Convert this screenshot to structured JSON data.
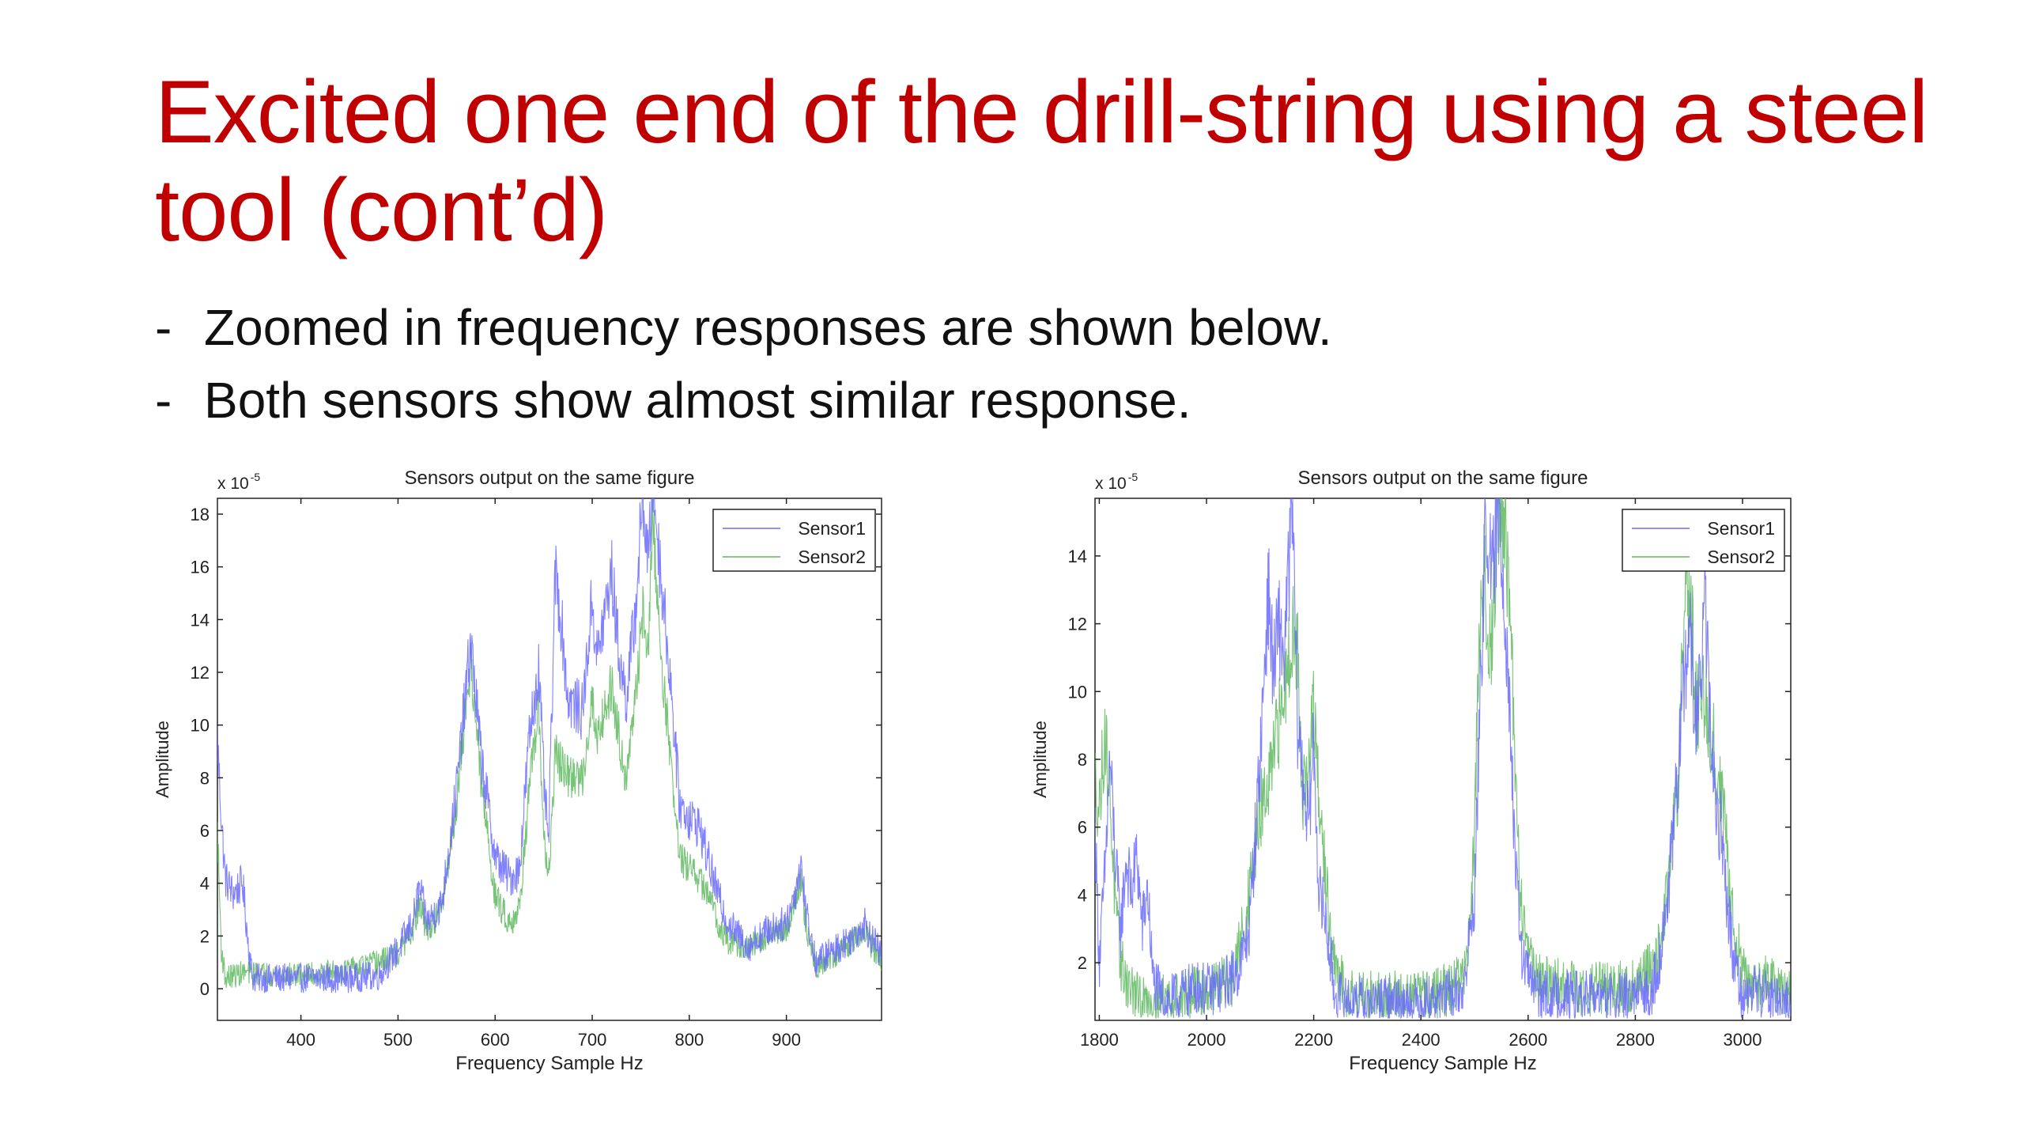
{
  "slide": {
    "title": "Excited one end of the drill-string using a steel tool (cont’d)",
    "bullets": [
      {
        "marker": "-",
        "text": "Zoomed in frequency responses are shown below."
      },
      {
        "marker": "-",
        "text": "Both sensors show almost similar response."
      }
    ]
  },
  "colors": {
    "title": "#c00000",
    "sensor1": "#6b6bff",
    "sensor2": "#5fb85f",
    "axis": "#222222"
  },
  "chart_data": [
    {
      "type": "line",
      "title": "Sensors output on the same figure",
      "xlabel": "Frequency Sample Hz",
      "ylabel": "Amplitude",
      "y_multiplier": "x 10",
      "y_exponent": "-5",
      "xlim": [
        314,
        998
      ],
      "ylim": [
        -1.2,
        18.6
      ],
      "xticks": [
        400,
        500,
        600,
        700,
        800,
        900
      ],
      "yticks": [
        0,
        2,
        4,
        6,
        8,
        10,
        12,
        14,
        16,
        18
      ],
      "legend": "top-right",
      "grid": false,
      "noise": {
        "sensor1": 0.9,
        "sensor2": 0.75
      },
      "series": [
        {
          "name": "Sensor1",
          "color": "#6b6bff",
          "points": [
            [
              314,
              9.5
            ],
            [
              318,
              6.5
            ],
            [
              322,
              4.2
            ],
            [
              330,
              3.6
            ],
            [
              340,
              4.0
            ],
            [
              345,
              2.0
            ],
            [
              350,
              0.4
            ],
            [
              400,
              0.4
            ],
            [
              450,
              0.4
            ],
            [
              480,
              0.5
            ],
            [
              500,
              1.5
            ],
            [
              515,
              2.5
            ],
            [
              522,
              3.8
            ],
            [
              530,
              2.5
            ],
            [
              545,
              3.2
            ],
            [
              560,
              7.5
            ],
            [
              575,
              13.2
            ],
            [
              585,
              9.0
            ],
            [
              600,
              5.0
            ],
            [
              615,
              4.2
            ],
            [
              625,
              4.5
            ],
            [
              635,
              9.5
            ],
            [
              645,
              12.2
            ],
            [
              650,
              8.0
            ],
            [
              655,
              5.5
            ],
            [
              662,
              15.8
            ],
            [
              668,
              14.0
            ],
            [
              675,
              11.0
            ],
            [
              690,
              10.5
            ],
            [
              700,
              14.8
            ],
            [
              705,
              12.5
            ],
            [
              712,
              14.0
            ],
            [
              720,
              15.8
            ],
            [
              728,
              12.5
            ],
            [
              735,
              11.0
            ],
            [
              745,
              14.5
            ],
            [
              752,
              18.8
            ],
            [
              758,
              16.0
            ],
            [
              762,
              19.5
            ],
            [
              770,
              16.0
            ],
            [
              780,
              12.0
            ],
            [
              790,
              7.0
            ],
            [
              800,
              6.5
            ],
            [
              810,
              6.2
            ],
            [
              820,
              4.8
            ],
            [
              830,
              3.5
            ],
            [
              840,
              2.5
            ],
            [
              860,
              1.6
            ],
            [
              880,
              2.2
            ],
            [
              900,
              2.5
            ],
            [
              910,
              3.8
            ],
            [
              915,
              4.8
            ],
            [
              920,
              3.0
            ],
            [
              930,
              1.0
            ],
            [
              950,
              1.5
            ],
            [
              970,
              2.0
            ],
            [
              980,
              2.5
            ],
            [
              990,
              1.8
            ],
            [
              998,
              1.2
            ]
          ]
        },
        {
          "name": "Sensor2",
          "color": "#5fb85f",
          "points": [
            [
              314,
              6.0
            ],
            [
              318,
              1.5
            ],
            [
              322,
              0.4
            ],
            [
              340,
              0.6
            ],
            [
              400,
              0.5
            ],
            [
              450,
              0.7
            ],
            [
              480,
              1.0
            ],
            [
              500,
              1.3
            ],
            [
              515,
              2.2
            ],
            [
              522,
              3.2
            ],
            [
              530,
              2.2
            ],
            [
              545,
              3.0
            ],
            [
              560,
              7.0
            ],
            [
              575,
              12.5
            ],
            [
              585,
              8.0
            ],
            [
              600,
              3.5
            ],
            [
              615,
              2.5
            ],
            [
              625,
              3.0
            ],
            [
              635,
              7.5
            ],
            [
              645,
              10.5
            ],
            [
              650,
              6.0
            ],
            [
              655,
              4.0
            ],
            [
              662,
              9.0
            ],
            [
              668,
              8.5
            ],
            [
              675,
              8.0
            ],
            [
              690,
              8.0
            ],
            [
              700,
              11.0
            ],
            [
              705,
              9.5
            ],
            [
              712,
              10.5
            ],
            [
              720,
              11.5
            ],
            [
              728,
              9.5
            ],
            [
              735,
              8.0
            ],
            [
              745,
              11.0
            ],
            [
              752,
              14.5
            ],
            [
              758,
              12.5
            ],
            [
              762,
              18.2
            ],
            [
              770,
              13.0
            ],
            [
              780,
              9.0
            ],
            [
              790,
              5.0
            ],
            [
              800,
              4.5
            ],
            [
              810,
              4.2
            ],
            [
              820,
              3.5
            ],
            [
              830,
              2.5
            ],
            [
              840,
              1.8
            ],
            [
              860,
              1.5
            ],
            [
              880,
              2.0
            ],
            [
              900,
              2.2
            ],
            [
              910,
              3.5
            ],
            [
              915,
              4.2
            ],
            [
              920,
              2.5
            ],
            [
              930,
              0.8
            ],
            [
              950,
              1.3
            ],
            [
              970,
              1.8
            ],
            [
              980,
              2.2
            ],
            [
              990,
              1.5
            ],
            [
              998,
              1.0
            ]
          ]
        }
      ]
    },
    {
      "type": "line",
      "title": "Sensors output on the same figure",
      "xlabel": "Frequency Sample Hz",
      "ylabel": "Amplitude",
      "y_multiplier": "x 10",
      "y_exponent": "-5",
      "xlim": [
        1792,
        3090
      ],
      "ylim": [
        0.3,
        15.7
      ],
      "xticks": [
        1800,
        2000,
        2200,
        2400,
        2600,
        2800,
        3000
      ],
      "yticks": [
        2,
        4,
        6,
        8,
        10,
        12,
        14
      ],
      "legend": "top-right",
      "grid": false,
      "noise": {
        "sensor1": 1.2,
        "sensor2": 1.2
      },
      "series": [
        {
          "name": "Sensor1",
          "color": "#6b6bff",
          "points": [
            [
              1792,
              6.0
            ],
            [
              1800,
              2.0
            ],
            [
              1810,
              4.5
            ],
            [
              1820,
              8.0
            ],
            [
              1830,
              5.0
            ],
            [
              1840,
              3.0
            ],
            [
              1850,
              5.0
            ],
            [
              1860,
              4.0
            ],
            [
              1870,
              5.2
            ],
            [
              1880,
              3.0
            ],
            [
              1890,
              4.2
            ],
            [
              1900,
              1.5
            ],
            [
              1920,
              0.8
            ],
            [
              1950,
              1.0
            ],
            [
              1980,
              1.3
            ],
            [
              2000,
              1.2
            ],
            [
              2030,
              1.3
            ],
            [
              2060,
              1.8
            ],
            [
              2080,
              3.0
            ],
            [
              2100,
              8.0
            ],
            [
              2115,
              13.0
            ],
            [
              2125,
              10.5
            ],
            [
              2135,
              12.0
            ],
            [
              2145,
              11.0
            ],
            [
              2160,
              15.5
            ],
            [
              2170,
              9.0
            ],
            [
              2180,
              7.5
            ],
            [
              2190,
              6.0
            ],
            [
              2200,
              8.5
            ],
            [
              2210,
              4.0
            ],
            [
              2220,
              3.5
            ],
            [
              2240,
              1.0
            ],
            [
              2300,
              0.8
            ],
            [
              2400,
              0.8
            ],
            [
              2450,
              1.0
            ],
            [
              2480,
              1.2
            ],
            [
              2500,
              4.0
            ],
            [
              2515,
              12.0
            ],
            [
              2522,
              15.5
            ],
            [
              2532,
              13.0
            ],
            [
              2545,
              15.5
            ],
            [
              2555,
              13.0
            ],
            [
              2565,
              10.0
            ],
            [
              2575,
              5.0
            ],
            [
              2590,
              2.0
            ],
            [
              2620,
              1.0
            ],
            [
              2700,
              1.0
            ],
            [
              2800,
              0.9
            ],
            [
              2830,
              1.2
            ],
            [
              2850,
              2.5
            ],
            [
              2870,
              5.5
            ],
            [
              2885,
              9.0
            ],
            [
              2895,
              11.0
            ],
            [
              2902,
              12.0
            ],
            [
              2910,
              9.0
            ],
            [
              2920,
              10.0
            ],
            [
              2930,
              12.5
            ],
            [
              2940,
              9.0
            ],
            [
              2950,
              6.5
            ],
            [
              2960,
              6.0
            ],
            [
              2970,
              4.0
            ],
            [
              2980,
              2.5
            ],
            [
              3000,
              1.0
            ],
            [
              3020,
              1.2
            ],
            [
              3050,
              1.0
            ],
            [
              3070,
              0.8
            ],
            [
              3090,
              0.7
            ]
          ]
        },
        {
          "name": "Sensor2",
          "color": "#5fb85f",
          "points": [
            [
              1792,
              7.5
            ],
            [
              1800,
              6.5
            ],
            [
              1810,
              8.8
            ],
            [
              1820,
              7.0
            ],
            [
              1830,
              3.5
            ],
            [
              1840,
              2.0
            ],
            [
              1850,
              1.5
            ],
            [
              1860,
              1.2
            ],
            [
              1880,
              0.8
            ],
            [
              1900,
              0.9
            ],
            [
              1950,
              1.0
            ],
            [
              2000,
              1.2
            ],
            [
              2050,
              1.5
            ],
            [
              2080,
              4.0
            ],
            [
              2100,
              6.5
            ],
            [
              2115,
              7.0
            ],
            [
              2130,
              8.5
            ],
            [
              2145,
              10.0
            ],
            [
              2160,
              12.0
            ],
            [
              2170,
              11.0
            ],
            [
              2180,
              7.0
            ],
            [
              2190,
              7.5
            ],
            [
              2200,
              9.5
            ],
            [
              2210,
              6.5
            ],
            [
              2220,
              5.0
            ],
            [
              2235,
              2.0
            ],
            [
              2260,
              1.2
            ],
            [
              2300,
              1.0
            ],
            [
              2400,
              1.0
            ],
            [
              2450,
              1.2
            ],
            [
              2480,
              1.6
            ],
            [
              2495,
              3.5
            ],
            [
              2505,
              9.0
            ],
            [
              2515,
              14.0
            ],
            [
              2530,
              11.0
            ],
            [
              2545,
              15.5
            ],
            [
              2555,
              15.0
            ],
            [
              2565,
              13.0
            ],
            [
              2575,
              8.0
            ],
            [
              2585,
              4.0
            ],
            [
              2600,
              2.5
            ],
            [
              2620,
              1.5
            ],
            [
              2700,
              1.2
            ],
            [
              2800,
              1.3
            ],
            [
              2840,
              2.0
            ],
            [
              2860,
              4.0
            ],
            [
              2880,
              7.5
            ],
            [
              2895,
              13.5
            ],
            [
              2905,
              12.0
            ],
            [
              2915,
              9.5
            ],
            [
              2930,
              10.0
            ],
            [
              2945,
              8.5
            ],
            [
              2960,
              7.0
            ],
            [
              2975,
              4.5
            ],
            [
              2990,
              2.5
            ],
            [
              3010,
              1.2
            ],
            [
              3040,
              1.5
            ],
            [
              3070,
              1.2
            ],
            [
              3090,
              1.0
            ]
          ]
        }
      ]
    }
  ]
}
